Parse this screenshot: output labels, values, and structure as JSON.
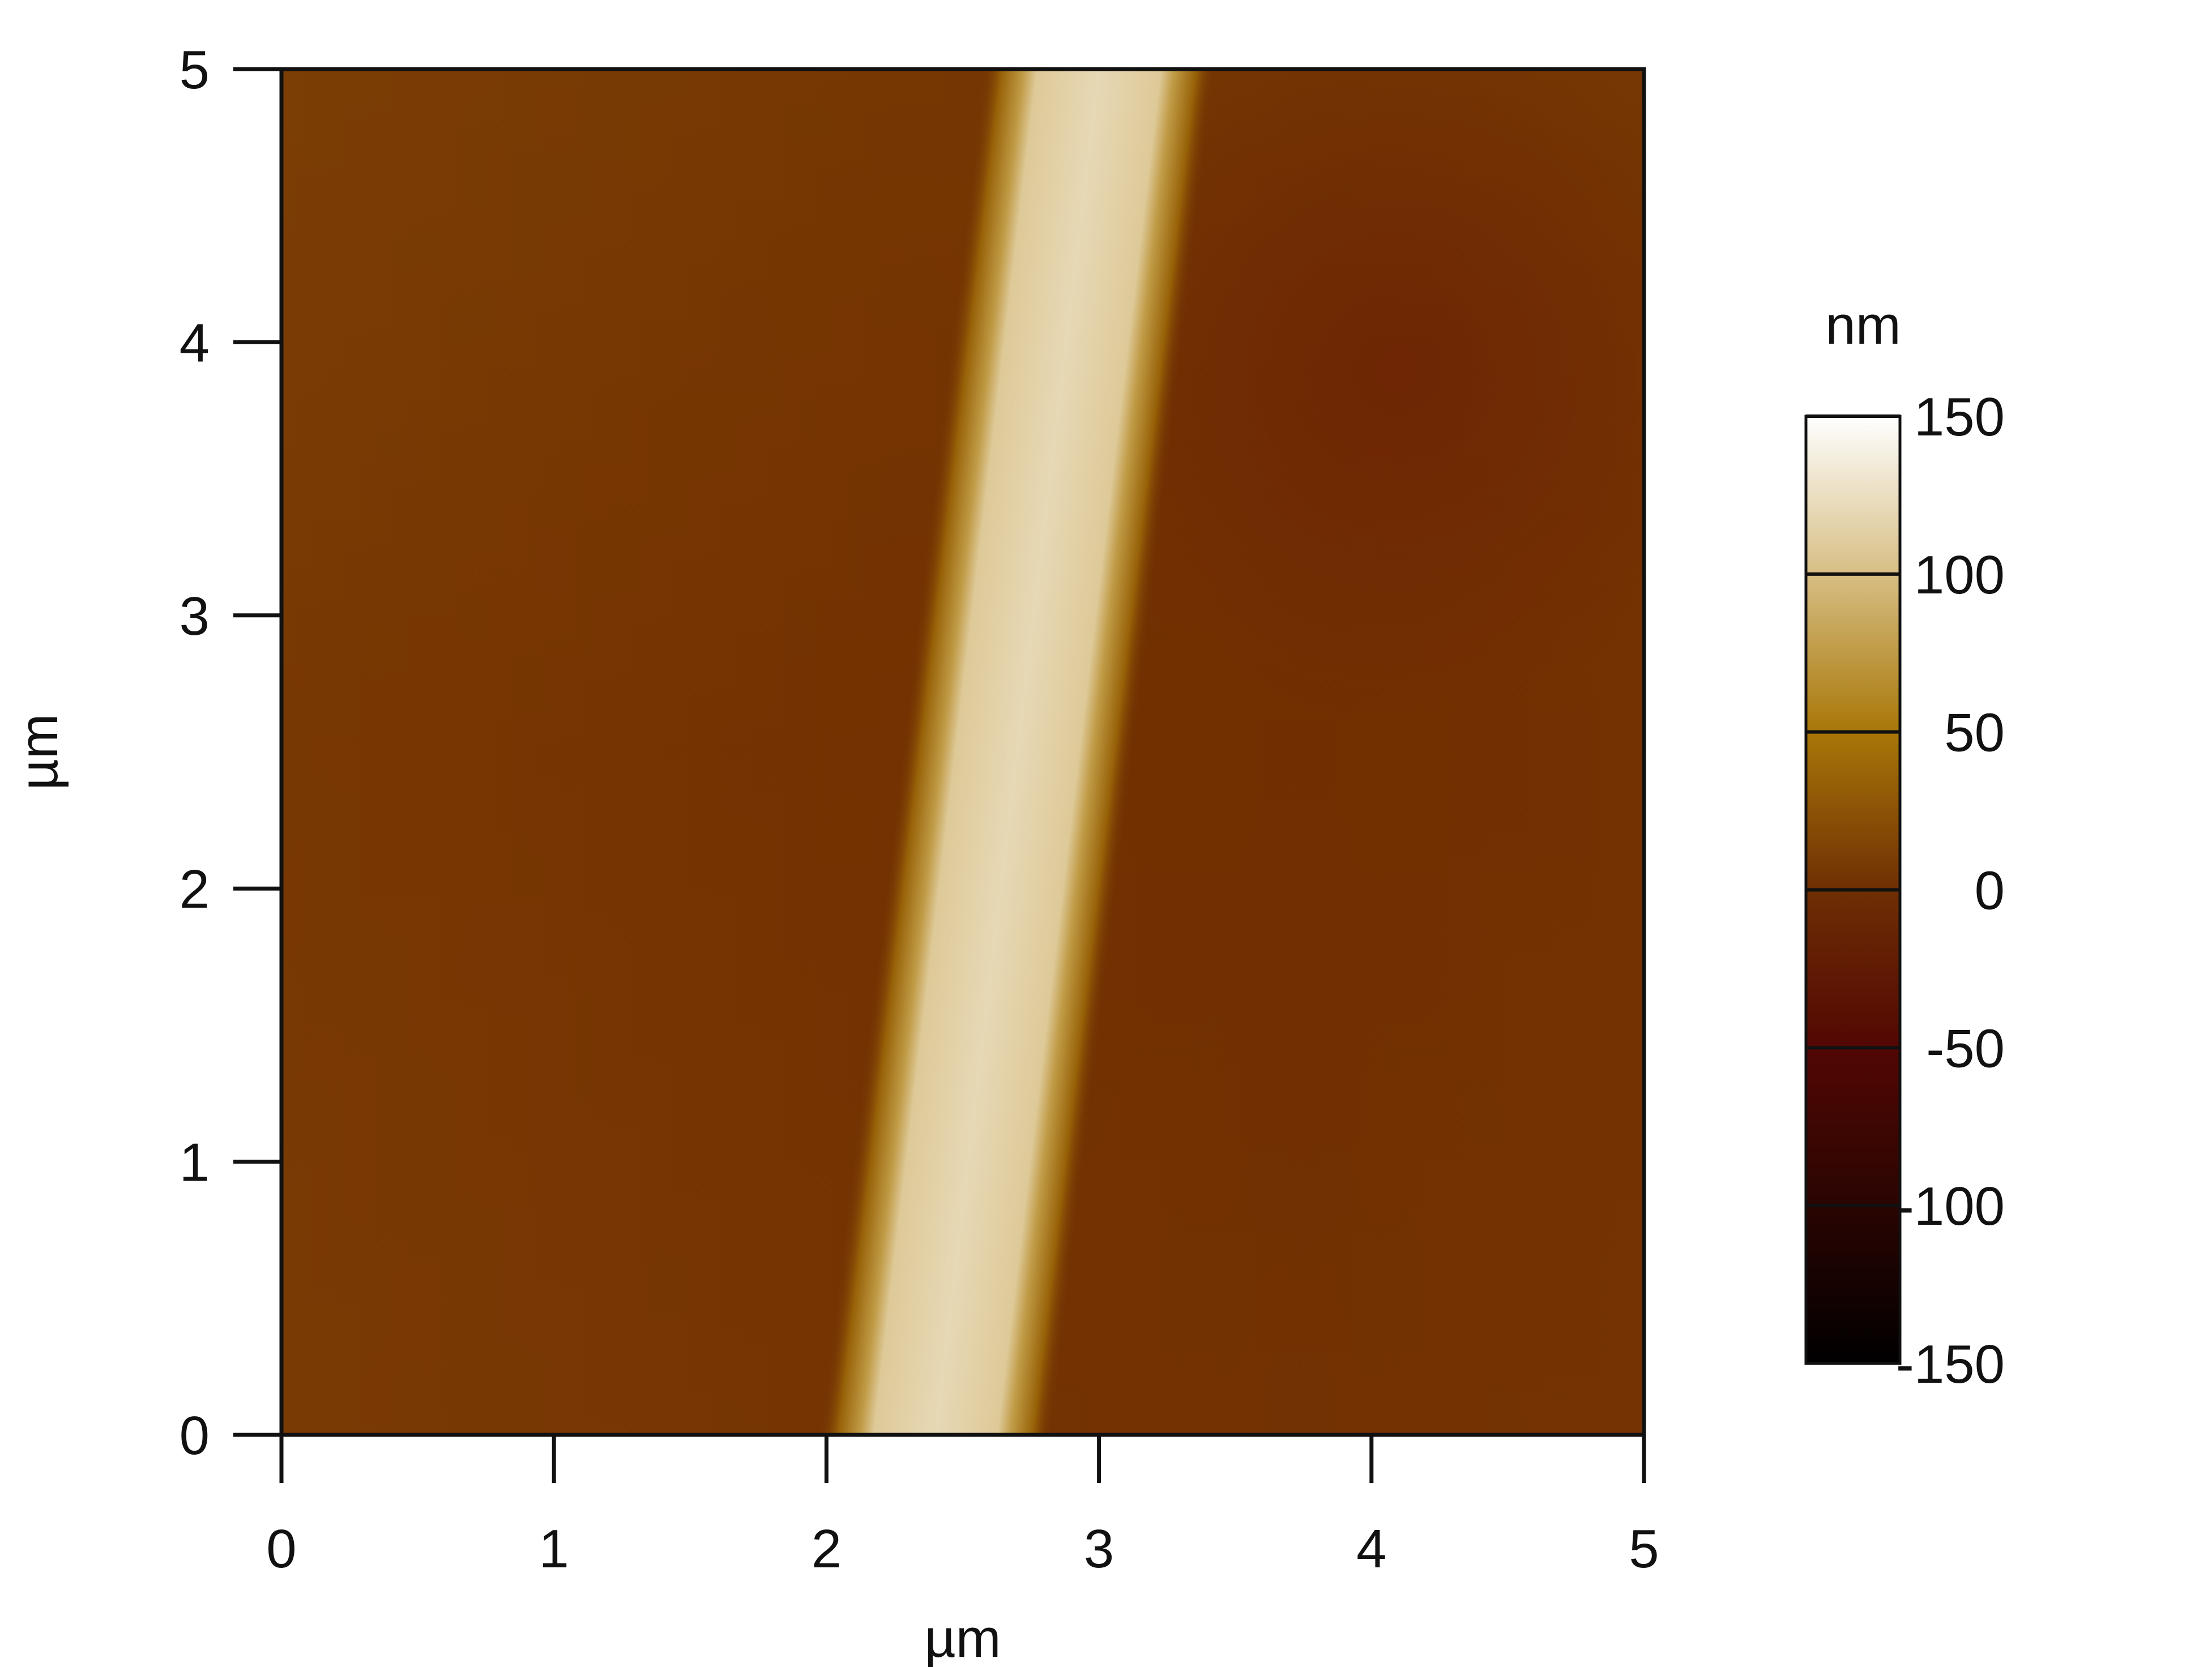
{
  "chart_data": {
    "type": "heatmap",
    "title": "",
    "x_axis": {
      "label": "µm",
      "range": [
        0,
        5
      ],
      "ticks": [
        0,
        1,
        2,
        3,
        4,
        5
      ],
      "tick_labels": [
        "0",
        "1",
        "2",
        "3",
        "4",
        "5"
      ]
    },
    "y_axis": {
      "label": "µm",
      "range": [
        0,
        5
      ],
      "ticks": [
        0,
        1,
        2,
        3,
        4,
        5
      ],
      "tick_labels": [
        "0",
        "1",
        "2",
        "3",
        "4",
        "5"
      ]
    },
    "colorbar": {
      "unit": "nm",
      "range": [
        -150,
        150
      ],
      "ticks": [
        150,
        100,
        50,
        0,
        -50,
        -100,
        -150
      ],
      "tick_labels": [
        "150",
        "100",
        "50",
        "0",
        "-50",
        "-100",
        "-150"
      ],
      "colormap": [
        {
          "value": -150,
          "color": "#000000"
        },
        {
          "value": -100,
          "color": "#2a0502"
        },
        {
          "value": -50,
          "color": "#520703"
        },
        {
          "value": 0,
          "color": "#6f2f04"
        },
        {
          "value": 50,
          "color": "#a87708"
        },
        {
          "value": 100,
          "color": "#d7be84"
        },
        {
          "value": 150,
          "color": "#ffffff"
        }
      ]
    },
    "surface": {
      "background_height_nm": 2,
      "ridge_peak_height_nm": 120,
      "ridge_center_x_at_y0_um": 2.4,
      "ridge_center_x_at_y5_um": 3.0,
      "ridge_top_width_um": 0.45,
      "ridge_total_width_um": 0.85
    },
    "grid": false,
    "legend": "right"
  }
}
